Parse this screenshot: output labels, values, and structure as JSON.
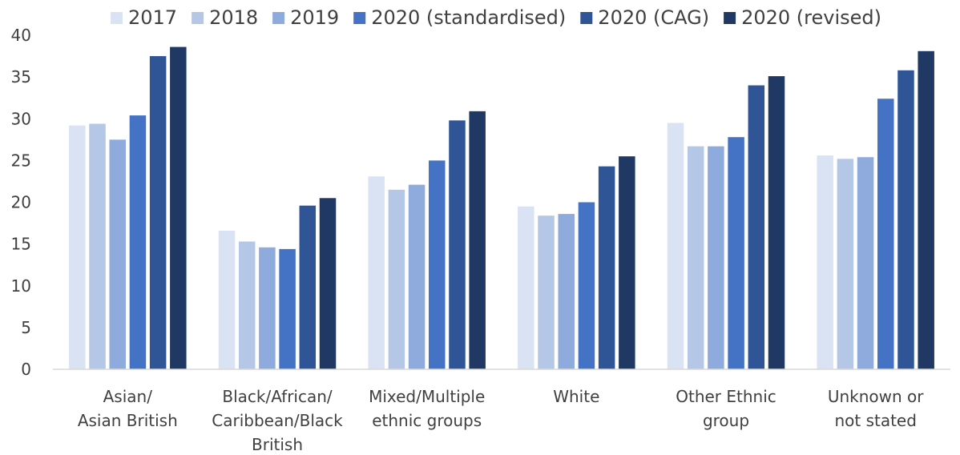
{
  "chart_data": {
    "type": "bar",
    "title": "",
    "xlabel": "",
    "ylabel": "",
    "ylim": [
      0,
      40
    ],
    "yticks": [
      0,
      5,
      10,
      15,
      20,
      25,
      30,
      35,
      40
    ],
    "grid": false,
    "legend_position": "top",
    "categories": [
      [
        "Asian/",
        "Asian British"
      ],
      [
        "Black/African/",
        "Caribbean/Black",
        "British"
      ],
      [
        "Mixed/Multiple",
        "ethnic groups"
      ],
      [
        "White"
      ],
      [
        "Other Ethnic",
        "group"
      ],
      [
        "Unknown or",
        "not stated"
      ]
    ],
    "series": [
      {
        "name": "2017",
        "color": "#dae3f3",
        "values": [
          29.2,
          16.6,
          23.1,
          19.5,
          29.5,
          25.6
        ]
      },
      {
        "name": "2018",
        "color": "#b4c7e7",
        "values": [
          29.4,
          15.3,
          21.5,
          18.4,
          26.7,
          25.2
        ]
      },
      {
        "name": "2019",
        "color": "#8faadc",
        "values": [
          27.5,
          14.6,
          22.1,
          18.6,
          26.7,
          25.4
        ]
      },
      {
        "name": "2020 (standardised)",
        "color": "#4472c4",
        "values": [
          30.4,
          14.4,
          25.0,
          20.0,
          27.8,
          32.4
        ]
      },
      {
        "name": "2020 (CAG)",
        "color": "#2f5597",
        "values": [
          37.5,
          19.6,
          29.8,
          24.3,
          34.0,
          35.8
        ]
      },
      {
        "name": "2020 (revised)",
        "color": "#203864",
        "values": [
          38.6,
          20.5,
          30.9,
          25.5,
          35.1,
          38.1
        ]
      }
    ]
  }
}
